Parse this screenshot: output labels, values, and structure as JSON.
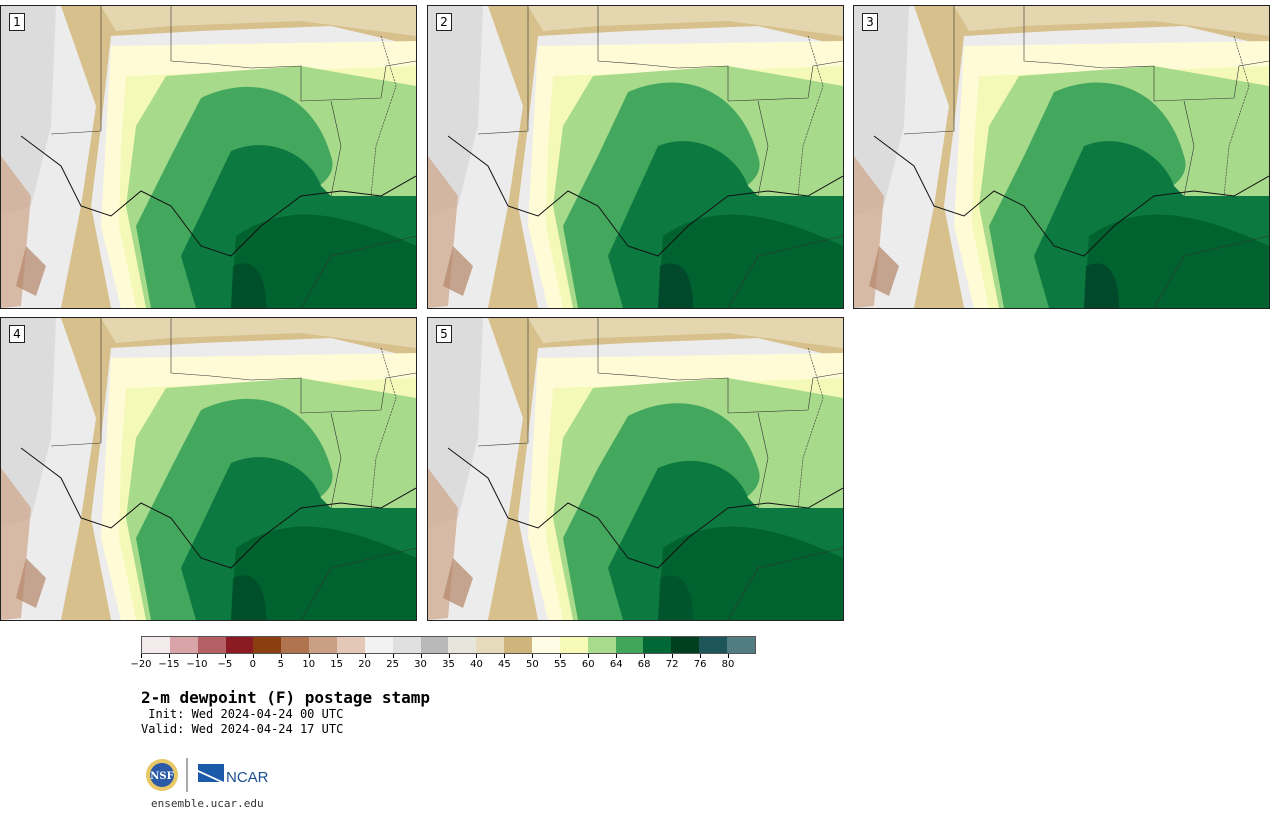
{
  "panels": [
    {
      "number": "1",
      "moist_level": 3
    },
    {
      "number": "2",
      "moist_level": 4
    },
    {
      "number": "3",
      "moist_level": 4
    },
    {
      "number": "4",
      "moist_level": 3
    },
    {
      "number": "5",
      "moist_level": 2
    }
  ],
  "legend": {
    "colors": [
      "#f3ebeb",
      "#d9a4a8",
      "#b56065",
      "#8c1a22",
      "#8b3f10",
      "#b07550",
      "#c9a084",
      "#e3c8b8",
      "#f2f2f2",
      "#e0e0e0",
      "#b9b9b9",
      "#e8e5dc",
      "#e6dcbc",
      "#cfb47c",
      "#fffce6",
      "#f8fbb8",
      "#a8dc8c",
      "#41a65a",
      "#006837",
      "#00401f",
      "#1e5558",
      "#517d82"
    ],
    "ticks": [
      "−20",
      "−15",
      "−10",
      "−5",
      "0",
      "5",
      "10",
      "15",
      "20",
      "25",
      "30",
      "35",
      "40",
      "45",
      "50",
      "55",
      "60",
      "64",
      "68",
      "72",
      "76",
      "80"
    ]
  },
  "title": "2-m dewpoint (F) postage stamp",
  "init": " Init: Wed 2024-04-24 00 UTC",
  "valid": "Valid: Wed 2024-04-24 17 UTC",
  "logo": {
    "nsf": "NSF",
    "ncar": "NCAR"
  },
  "url": "ensemble.ucar.edu"
}
